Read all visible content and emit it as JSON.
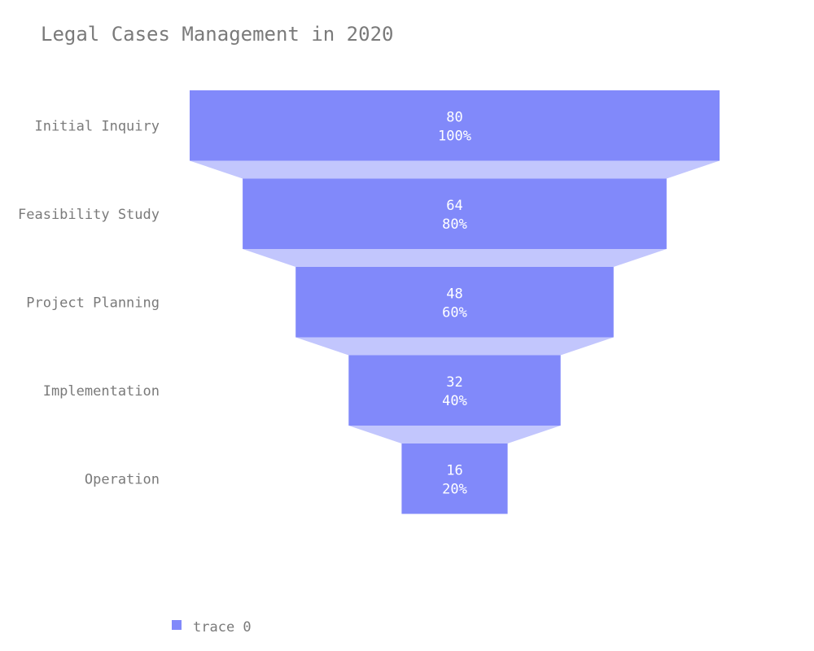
{
  "chart_data": {
    "type": "funnel",
    "title": "Legal Cases Management in 2020",
    "categories": [
      "Initial Inquiry",
      "Feasibility Study",
      "Project Planning",
      "Implementation",
      "Operation"
    ],
    "series": [
      {
        "name": "trace 0",
        "values": [
          80,
          64,
          48,
          32,
          16
        ],
        "percent_labels": [
          "100%",
          "80%",
          "60%",
          "40%",
          "20%"
        ]
      }
    ],
    "legend": {
      "position": "bottom-left",
      "entries": [
        "trace 0"
      ]
    },
    "colors": {
      "bar": "#8189fa",
      "connector": "#c2c6fd",
      "text": "#7a7a7a",
      "bar_text": "#ffffff"
    }
  }
}
